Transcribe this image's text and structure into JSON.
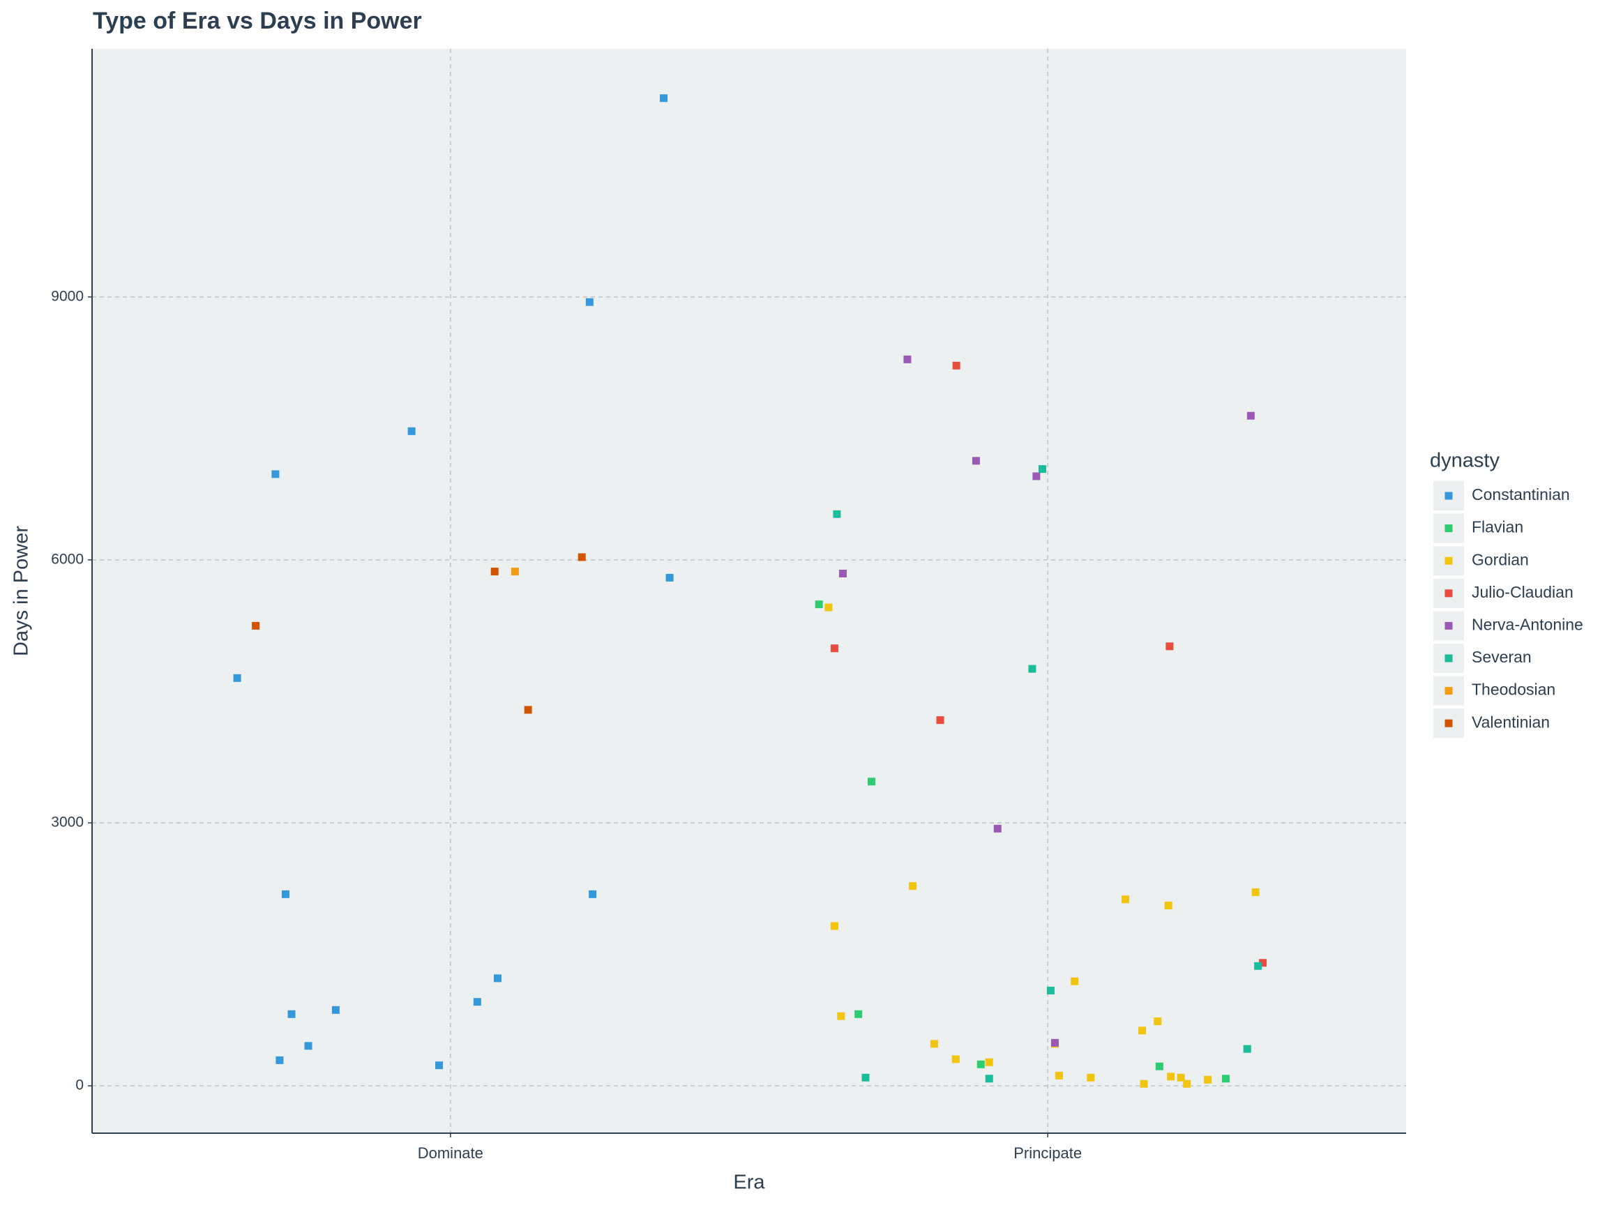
{
  "chart_data": {
    "type": "scatter",
    "title": "Type of Era vs Days in Power",
    "x_label": "Era",
    "y_label": "Days in Power",
    "legend_title": "dynasty",
    "legend_position": "right",
    "grid": true,
    "xlim": [
      0.4,
      2.6
    ],
    "xticks": [
      {
        "value": 1,
        "label": "Dominate"
      },
      {
        "value": 2,
        "label": "Principate"
      }
    ],
    "ylim": [
      -540,
      11830
    ],
    "yticks": [
      0,
      3000,
      6000,
      9000
    ],
    "series": [
      {
        "name": "Constantinian",
        "color": "#3498db",
        "x": [
          0.643,
          0.707,
          0.724,
          0.734,
          0.714,
          0.762,
          0.808,
          0.935,
          0.981,
          1.045,
          1.079,
          1.233,
          1.238,
          1.357,
          1.367
        ],
        "values": [
          4652,
          6978,
          2186,
          818,
          292,
          456,
          865,
          7468,
          234,
          958,
          1227,
          8941,
          2186,
          11267,
          5797
        ]
      },
      {
        "name": "Flavian",
        "color": "#2ecc71",
        "x": [
          1.617,
          1.683,
          1.705,
          1.888,
          2.187,
          2.298
        ],
        "values": [
          5493,
          818,
          3471,
          245,
          222,
          82
        ]
      },
      {
        "name": "Gordian",
        "color": "#f1c40f",
        "x": [
          1.633,
          1.643,
          1.654,
          1.774,
          1.81,
          1.846,
          1.902,
          2.012,
          2.019,
          2.045,
          2.072,
          2.13,
          2.158,
          2.161,
          2.184,
          2.202,
          2.206,
          2.223,
          2.233,
          2.268,
          2.348
        ],
        "values": [
          5458,
          1823,
          795,
          2279,
          479,
          304,
          269,
          479,
          117,
          1192,
          94,
          2127,
          631,
          23,
          736,
          2057,
          105,
          94,
          23,
          70,
          2209
        ]
      },
      {
        "name": "Julio-Claudian",
        "color": "#e74c3c",
        "x": [
          1.643,
          1.82,
          1.847,
          2.204,
          2.36
        ],
        "values": [
          4991,
          4172,
          8216,
          5014,
          1403
        ]
      },
      {
        "name": "Nerva-Antonine",
        "color": "#9b59b6",
        "x": [
          1.657,
          1.765,
          1.88,
          1.916,
          1.981,
          2.012,
          2.34
        ],
        "values": [
          5844,
          8287,
          7130,
          2934,
          6954,
          491,
          7644
        ]
      },
      {
        "name": "Severan",
        "color": "#1abc9c",
        "x": [
          1.647,
          1.695,
          1.902,
          1.974,
          1.991,
          2.005,
          2.334,
          2.352
        ],
        "values": [
          6522,
          94,
          82,
          4757,
          7036,
          1087,
          421,
          1367
        ]
      },
      {
        "name": "Theodosian",
        "color": "#f39c12",
        "x": [
          1.108
        ],
        "values": [
          5867
        ]
      },
      {
        "name": "Valentinian",
        "color": "#d35400",
        "x": [
          0.674,
          1.074,
          1.13,
          1.22
        ],
        "values": [
          5248,
          5867,
          4289,
          6031
        ]
      }
    ]
  }
}
